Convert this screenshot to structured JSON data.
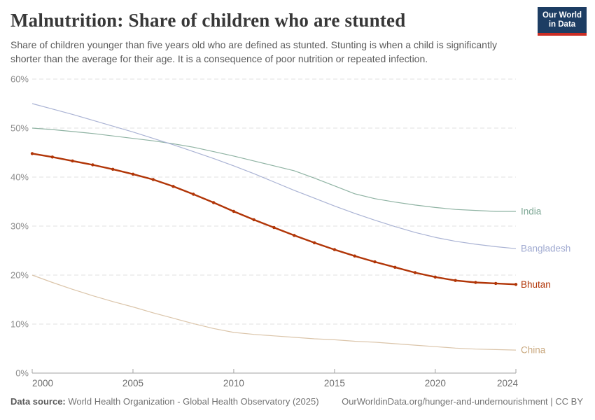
{
  "header": {
    "title": "Malnutrition: Share of children who are stunted",
    "subtitle": "Share of children younger than five years old who are defined as stunted. Stunting is when a child is significantly shorter than the average for their age. It is a consequence of poor nutrition or repeated infection.",
    "logo": {
      "line1": "Our World",
      "line2": "in Data",
      "bg_color": "#1D3D63",
      "bar_color": "#CB2D24"
    }
  },
  "footer": {
    "source_label": "Data source:",
    "source_text": "World Health Organization - Global Health Observatory (2025)",
    "link_text": "OurWorldinData.org/hunger-and-undernourishment | CC BY"
  },
  "chart_data": {
    "type": "line",
    "title": "Malnutrition: Share of children who are stunted",
    "xlabel": "",
    "ylabel": "",
    "xlim": [
      2000,
      2024
    ],
    "ylim": [
      0,
      60
    ],
    "xticks": [
      2000,
      2005,
      2010,
      2015,
      2020,
      2024
    ],
    "yticks": [
      0,
      10,
      20,
      30,
      40,
      50,
      60
    ],
    "ytick_suffix": "%",
    "grid": "horizontal-dashed",
    "legend_position": "line-end-labels",
    "x": [
      2000,
      2001,
      2002,
      2003,
      2004,
      2005,
      2006,
      2007,
      2008,
      2009,
      2010,
      2011,
      2012,
      2013,
      2014,
      2015,
      2016,
      2017,
      2018,
      2019,
      2020,
      2021,
      2022,
      2023,
      2024
    ],
    "series": [
      {
        "name": "India",
        "color": "#8FB3A3",
        "label_color": "#7FA896",
        "width": 1.2,
        "markers": false,
        "values": [
          50.0,
          49.7,
          49.3,
          48.9,
          48.4,
          47.9,
          47.4,
          46.8,
          46.1,
          45.2,
          44.3,
          43.3,
          42.3,
          41.3,
          39.8,
          38.2,
          36.6,
          35.6,
          34.9,
          34.3,
          33.8,
          33.4,
          33.2,
          33.0,
          33.0
        ]
      },
      {
        "name": "Bangladesh",
        "color": "#AAB3D4",
        "label_color": "#9FA9D0",
        "width": 1.2,
        "markers": false,
        "values": [
          55.0,
          53.9,
          52.8,
          51.6,
          50.4,
          49.2,
          47.9,
          46.6,
          45.2,
          43.8,
          42.3,
          40.7,
          39.0,
          37.3,
          35.7,
          34.1,
          32.6,
          31.2,
          29.9,
          28.7,
          27.7,
          26.9,
          26.3,
          25.8,
          25.4
        ]
      },
      {
        "name": "China",
        "color": "#DBC5AA",
        "label_color": "#C9A87E",
        "width": 1.2,
        "markers": false,
        "values": [
          20.0,
          18.5,
          17.1,
          15.8,
          14.6,
          13.5,
          12.3,
          11.2,
          10.1,
          9.1,
          8.3,
          7.9,
          7.6,
          7.3,
          7.0,
          6.8,
          6.5,
          6.3,
          6.0,
          5.7,
          5.4,
          5.1,
          4.9,
          4.8,
          4.7
        ]
      },
      {
        "name": "Bhutan",
        "color": "#B13507",
        "label_color": "#B13507",
        "width": 2.4,
        "markers": true,
        "values": [
          44.8,
          44.1,
          43.3,
          42.5,
          41.6,
          40.6,
          39.5,
          38.1,
          36.5,
          34.8,
          33.0,
          31.3,
          29.7,
          28.1,
          26.6,
          25.2,
          23.9,
          22.7,
          21.6,
          20.5,
          19.6,
          18.9,
          18.5,
          18.3,
          18.1
        ]
      }
    ]
  }
}
